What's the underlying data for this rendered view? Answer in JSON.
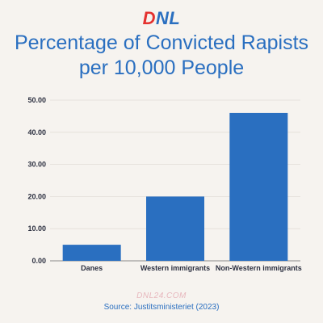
{
  "brand": {
    "logo_d": "D",
    "logo_nl": "NL",
    "accent": "#e4312f",
    "primary": "#2a6fc0"
  },
  "header": {
    "title_line1": "Percentage of Convicted Rapists",
    "title_line2": "per 10,000 People"
  },
  "chart_data": {
    "type": "bar",
    "title": "Percentage of Convicted Rapists per 10,000 People",
    "categories": [
      "Danes",
      "Western immigrants",
      "Non-Western immigrants"
    ],
    "values": [
      5,
      20,
      46
    ],
    "ylim": [
      0,
      50
    ],
    "yticks": [
      "0.00",
      "10.00",
      "20.00",
      "30.00",
      "40.00",
      "50.00"
    ],
    "grid": true,
    "bar_color": "#2a6fc0"
  },
  "footer": {
    "watermark": "DNL24.COM",
    "source": "Source: Justitsministeriet (2023)"
  }
}
